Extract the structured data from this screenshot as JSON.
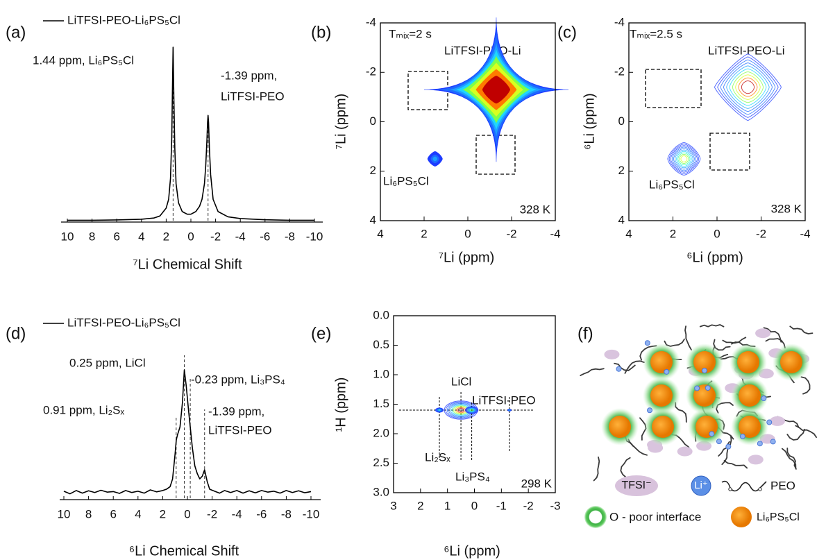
{
  "chart_data": [
    {
      "type": "line",
      "panel": "(a)",
      "x_label": "⁷Li Chemical Shift",
      "xlim": [
        10,
        -10
      ],
      "xticks": [
        10,
        8,
        6,
        4,
        2,
        0,
        -2,
        -4,
        -6,
        -8,
        -10
      ],
      "ylim": [
        0,
        100
      ],
      "x": [
        10,
        8,
        6,
        4,
        3,
        2.5,
        2,
        1.8,
        1.65,
        1.55,
        1.5,
        1.44,
        1.38,
        1.3,
        1.2,
        1,
        0.7,
        0.3,
        0,
        -0.4,
        -0.7,
        -0.9,
        -1.1,
        -1.2,
        -1.3,
        -1.35,
        -1.39,
        -1.43,
        -1.5,
        -1.6,
        -1.8,
        -2.2,
        -3,
        -4,
        -6,
        -8,
        -10
      ],
      "series": [
        {
          "name": "LiTFSI-PEO-Li₆PS₅Cl",
          "color": "#000000",
          "values": [
            1,
            1,
            1.2,
            1.6,
            2.3,
            3.5,
            8,
            13,
            25,
            48,
            72,
            100,
            72,
            42,
            22,
            11,
            6,
            4.5,
            4.5,
            6,
            9,
            13,
            22,
            32,
            47,
            57,
            61,
            57,
            42,
            27,
            13,
            6,
            3,
            2,
            1.3,
            1,
            1
          ]
        }
      ],
      "peak_positions": [
        1.44,
        -1.39
      ],
      "annotations": [
        "1.44 ppm, Li₆PS₅Cl",
        "-1.39 ppm,",
        "LiTFSI-PEO"
      ]
    },
    {
      "type": "contour",
      "panel": "(b)",
      "x_label": "⁷Li (ppm)",
      "y_label": "⁷Li (ppm)",
      "xlim": [
        4,
        -4
      ],
      "xticks": [
        4,
        2,
        0,
        -2,
        -4
      ],
      "ylim": [
        4,
        -4
      ],
      "yticks": [
        4,
        2,
        0,
        -2,
        -4
      ],
      "filled": true,
      "peaks": {
        "x": [
          1.5,
          -1.3
        ],
        "y": [
          1.5,
          -1.3
        ],
        "intensity": [
          15,
          100
        ]
      },
      "annotations": [
        "Tₘᵢₓ=2 s",
        "LiTFSI-PEO-Li",
        "Li₆PS₅Cl",
        "328 K"
      ]
    },
    {
      "type": "contour",
      "panel": "(c)",
      "x_label": "⁶Li (ppm)",
      "y_label": "⁶Li (ppm)",
      "xlim": [
        4,
        -4
      ],
      "xticks": [
        4,
        2,
        0,
        -2,
        -4
      ],
      "ylim": [
        4,
        -4
      ],
      "yticks": [
        4,
        2,
        0,
        -2,
        -4
      ],
      "filled": false,
      "peaks": {
        "x": [
          1.5,
          -1.4
        ],
        "y": [
          1.5,
          -1.4
        ],
        "intensity": [
          55,
          100
        ]
      },
      "annotations": [
        "Tₘᵢₓ=2.5 s",
        "LiTFSI-PEO-Li",
        "Li₆PS₅Cl",
        "328 K"
      ]
    },
    {
      "type": "line",
      "panel": "(d)",
      "x_label": "⁶Li Chemical Shift",
      "xlim": [
        10,
        -10
      ],
      "xticks": [
        10,
        8,
        6,
        4,
        2,
        0,
        -2,
        -4,
        -6,
        -8,
        -10
      ],
      "ylim": [
        0,
        100
      ],
      "x": [
        10,
        9.5,
        9,
        8.5,
        8,
        7.5,
        7,
        6.5,
        6,
        5.5,
        5,
        4.5,
        4,
        3.5,
        3,
        2.5,
        2,
        1.7,
        1.4,
        1.2,
        1,
        0.9,
        0.8,
        0.6,
        0.4,
        0.25,
        0.1,
        -0.1,
        -0.23,
        -0.4,
        -0.6,
        -0.8,
        -1,
        -1.2,
        -1.39,
        -1.6,
        -1.8,
        -2.2,
        -2.6,
        -3,
        -3.5,
        -4,
        -4.5,
        -5,
        -5.5,
        -6,
        -6.5,
        -7,
        -7.5,
        -8,
        -8.5,
        -9,
        -9.5,
        -10
      ],
      "series": [
        {
          "name": "LiTFSI-PEO-Li₆PS₅Cl",
          "color": "#000000",
          "values": [
            6.5,
            4.5,
            7,
            5,
            6.8,
            5.5,
            7.2,
            5.8,
            6.2,
            4.8,
            7,
            5.5,
            6.5,
            5,
            7.5,
            6,
            7,
            8,
            10,
            16,
            35,
            46,
            50,
            56,
            75,
            100,
            88,
            68,
            56,
            40,
            26,
            20,
            16,
            18,
            23,
            14,
            8,
            6.5,
            5,
            7,
            5.5,
            7,
            5,
            6.8,
            5.2,
            7,
            5.8,
            6.5,
            5,
            7,
            5.5,
            6.8,
            5.3,
            6.2
          ]
        }
      ],
      "peak_positions": [
        0.91,
        0.25,
        -0.23,
        -1.39
      ],
      "annotations": [
        "0.25 ppm, LiCl",
        "-0.23 ppm, Li₃PS₄",
        "0.91 ppm, Li₂Sₓ",
        "-1.39 ppm,",
        "LiTFSI-PEO"
      ]
    },
    {
      "type": "contour",
      "panel": "(e)",
      "x_label": "⁶Li (ppm)",
      "y_label": "¹H (ppm)",
      "xlim": [
        3,
        -3
      ],
      "xticks": [
        3,
        2,
        1,
        0,
        -1,
        -2,
        -3
      ],
      "ylim": [
        3,
        0
      ],
      "yticks": [
        {
          "value": 0,
          "label": "0.0"
        },
        0.5,
        {
          "value": 1,
          "label": "1.0"
        },
        1.5,
        {
          "value": 2,
          "label": "2.0"
        },
        2.5,
        {
          "value": 3,
          "label": "3.0"
        }
      ],
      "filled": false,
      "peaks": {
        "x": [
          1.3,
          0.5,
          0.1,
          -1.3
        ],
        "y": [
          1.6,
          1.6,
          1.6,
          1.6
        ],
        "intensity": [
          30,
          100,
          45,
          15
        ]
      },
      "annotations": [
        "LiCl",
        "LiTFSI-PEO",
        "Li₂Sₓ",
        "Li₃PS₄",
        "298 K"
      ]
    }
  ],
  "diagram": {
    "panel": "(f)",
    "legend": {
      "tfsi": "TFSI⁻",
      "li": "Li⁺",
      "peo": "PEO",
      "interface": "O - poor interface",
      "lpsc": "Li₆PS₅Cl"
    }
  }
}
